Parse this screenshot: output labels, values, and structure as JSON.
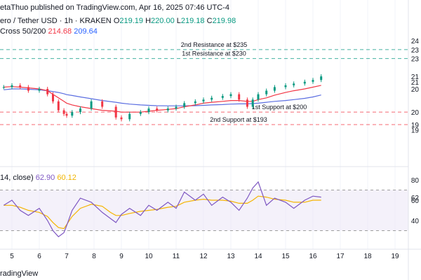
{
  "header": {
    "published": "etaThuo published on TradingView.com, Apr 16, 2025 07:46 UTC-4",
    "symbol": "ero / Tether USD · 1h · KRAKEN",
    "ohlc": {
      "o_label": "O",
      "o": "219.19",
      "h_label": "H",
      "h": "220.00",
      "l_label": "L",
      "l": "219.18",
      "c_label": "C",
      "c": "219.98"
    },
    "ma_label": "Cross 50/200",
    "ma_fast": "214.68",
    "ma_slow": "209.64",
    "rsi_label": "14, close)",
    "rsi_value": "62.90",
    "rsi_ma_value": "60.12",
    "brand": "radingView"
  },
  "colors": {
    "up": "#089981",
    "down": "#f23645",
    "ma_fast": "#f23645",
    "ma_slow": "#5b6ee1",
    "rsi": "#7e57c2",
    "rsi_ma": "#f5b400",
    "support": "#f23645",
    "resistance": "#089981"
  },
  "chart_data": [
    {
      "type": "line",
      "title": "",
      "x_ticks": [
        "5",
        "6",
        "7",
        "8",
        "9",
        "10",
        "11",
        "12",
        "13",
        "14",
        "15",
        "16",
        "17",
        "18",
        "19"
      ],
      "y_labels": [
        "24",
        "23",
        "23",
        "21",
        "21",
        "20",
        "20",
        "19",
        "19"
      ],
      "levels": [
        {
          "name": "2nd Resistance at $235",
          "value": 235,
          "kind": "resistance"
        },
        {
          "name": "1st Resistance at $230",
          "value": 230,
          "kind": "resistance"
        },
        {
          "name": "1st Support at $200",
          "value": 200,
          "kind": "support"
        },
        {
          "name": "2nd Support at $193",
          "value": 193,
          "kind": "support"
        }
      ],
      "price_x": [
        4.7,
        5.0,
        5.3,
        5.6,
        6.0,
        6.3,
        6.5,
        6.7,
        6.9,
        7.0,
        7.2,
        7.5,
        7.9,
        8.3,
        8.8,
        9.0,
        9.3,
        9.7,
        10.0,
        10.3,
        10.7,
        11.0,
        11.3,
        11.7,
        12.0,
        12.3,
        12.7,
        13.0,
        13.3,
        13.6,
        13.8,
        14.0,
        14.3,
        14.6,
        15.0,
        15.3,
        15.7,
        16.0,
        16.3
      ],
      "price_close": [
        214,
        215,
        214,
        212,
        213,
        210,
        206,
        201,
        199,
        198,
        200,
        202,
        206,
        203,
        197,
        196,
        199,
        200,
        202,
        201,
        202,
        203,
        205,
        206,
        207,
        208,
        209,
        210,
        207,
        203,
        207,
        210,
        212,
        214,
        215,
        216,
        217,
        218,
        220
      ],
      "ma_fast": [
        214,
        214.3,
        214,
        213.6,
        213,
        212,
        210,
        208,
        206,
        205,
        204,
        203,
        202,
        201,
        200.5,
        200,
        200,
        200,
        200.5,
        201,
        201.5,
        202,
        203,
        204,
        205,
        205.5,
        206,
        206.5,
        206.5,
        206,
        206,
        207,
        208,
        209.5,
        211,
        212,
        213,
        214,
        215
      ],
      "ma_slow": [
        212.5,
        213,
        213,
        212.8,
        212.5,
        212,
        211.5,
        211,
        210.3,
        209.8,
        209.3,
        208.5,
        207.5,
        206.5,
        205.5,
        205,
        204.5,
        204,
        203.8,
        203.6,
        203.5,
        203.5,
        203.5,
        203.6,
        203.8,
        204,
        204.2,
        204.5,
        204.6,
        204.6,
        204.8,
        205,
        205.5,
        206,
        206.5,
        207,
        207.7,
        208.5,
        209.6
      ]
    },
    {
      "type": "line",
      "title": "",
      "y_labels": [
        "80",
        "62",
        "60",
        "40"
      ],
      "ylim": [
        20,
        85
      ],
      "bands": [
        30,
        70
      ],
      "rsi_x": [
        4.7,
        5.0,
        5.3,
        5.6,
        6.0,
        6.3,
        6.5,
        6.7,
        6.9,
        7.0,
        7.2,
        7.5,
        7.9,
        8.3,
        8.6,
        8.8,
        9.0,
        9.3,
        9.7,
        10.0,
        10.3,
        10.7,
        11.0,
        11.3,
        11.7,
        12.0,
        12.3,
        12.7,
        13.0,
        13.3,
        13.6,
        13.8,
        14.0,
        14.3,
        14.6,
        15.0,
        15.3,
        15.7,
        16.0,
        16.3
      ],
      "rsi": [
        55,
        60,
        50,
        45,
        52,
        40,
        30,
        24,
        28,
        35,
        50,
        62,
        58,
        48,
        42,
        38,
        46,
        52,
        45,
        55,
        50,
        58,
        52,
        68,
        60,
        66,
        55,
        63,
        58,
        50,
        62,
        72,
        78,
        55,
        62,
        58,
        52,
        60,
        64,
        63
      ],
      "rsi_ma": [
        55,
        55,
        53,
        50,
        48,
        44,
        38,
        33,
        32,
        36,
        44,
        52,
        56,
        54,
        48,
        45,
        45,
        47,
        49,
        50,
        51,
        53,
        54,
        58,
        60,
        61,
        60,
        60,
        59,
        57,
        57,
        60,
        64,
        63,
        61,
        60,
        58,
        58,
        60,
        60
      ]
    }
  ]
}
